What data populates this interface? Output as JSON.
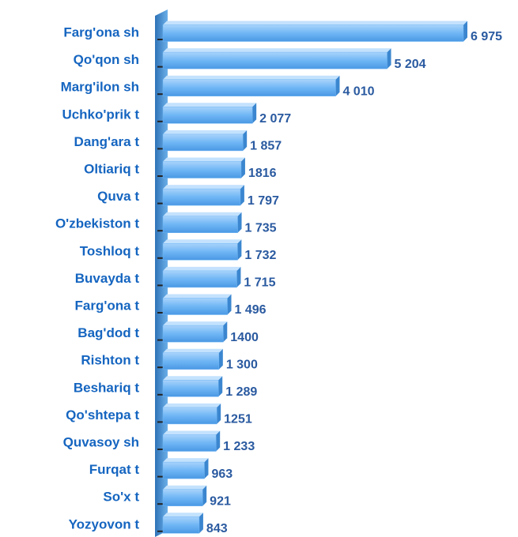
{
  "chart_data": {
    "type": "bar",
    "orientation": "horizontal",
    "categories": [
      "Farg'ona sh",
      "Qo'qon sh",
      "Marg'ilon sh",
      "Uchko'prik t",
      "Dang'ara t",
      "Oltiariq t",
      "Quva t",
      "O'zbekiston t",
      "Toshloq t",
      "Buvayda t",
      "Farg'ona t",
      "Bag'dod t",
      "Rishton t",
      "Beshariq t",
      "Qo'shtepa t",
      "Quvasoy sh",
      "Furqat t",
      "So'x t",
      "Yozyovon t"
    ],
    "values": [
      6975,
      5204,
      4010,
      2077,
      1857,
      1816,
      1797,
      1735,
      1732,
      1715,
      1496,
      1400,
      1300,
      1289,
      1251,
      1233,
      963,
      921,
      843
    ],
    "value_labels": [
      "6 975",
      "5 204",
      "4 010",
      "2 077",
      "1 857",
      "1816",
      "1 797",
      "1 735",
      "1 732",
      "1 715",
      "1 496",
      "1400",
      "1 300",
      "1 289",
      "1251",
      "1 233",
      "963",
      "921",
      "843"
    ],
    "color": "#6fb6f5"
  }
}
